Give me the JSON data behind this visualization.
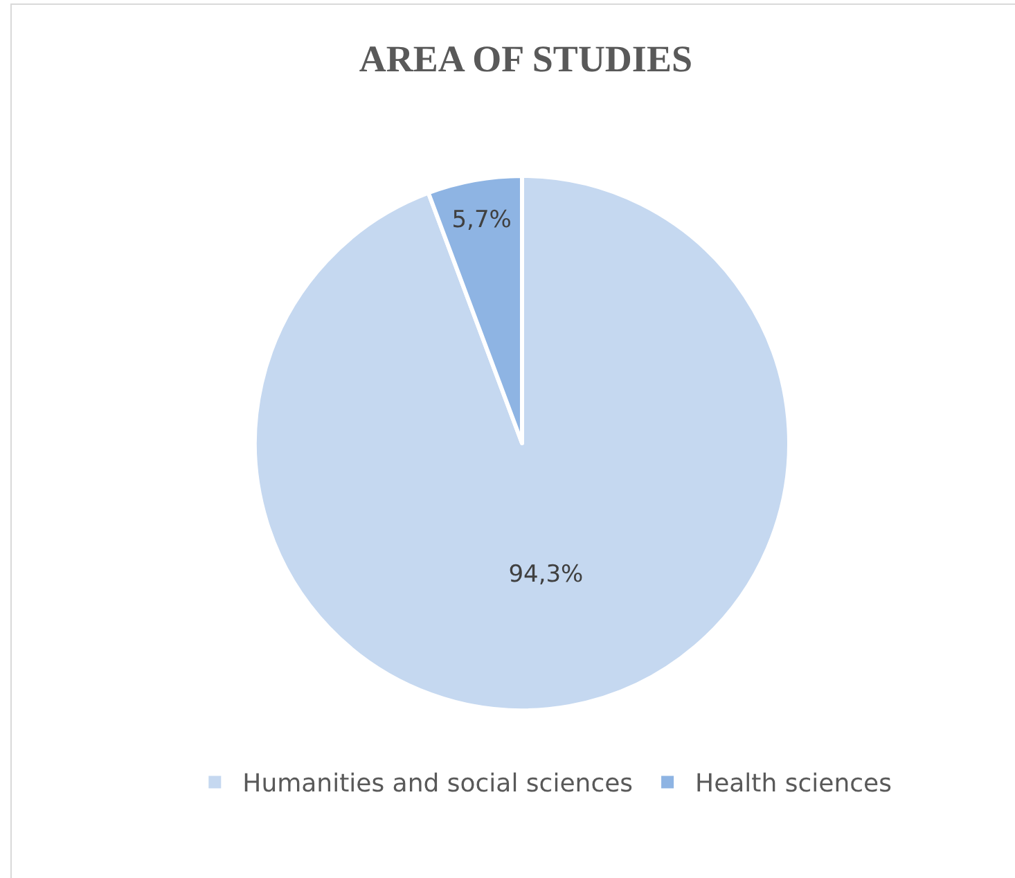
{
  "chart_data": {
    "type": "pie",
    "title": "AREA OF STUDIES",
    "categories": [
      "Humanities and social sciences",
      "Health sciences"
    ],
    "values": [
      94.3,
      5.7
    ],
    "value_labels": [
      "94,3%",
      "5,7%"
    ],
    "colors": [
      "#c5d8f0",
      "#8eb4e3"
    ],
    "legend": "bottom"
  }
}
